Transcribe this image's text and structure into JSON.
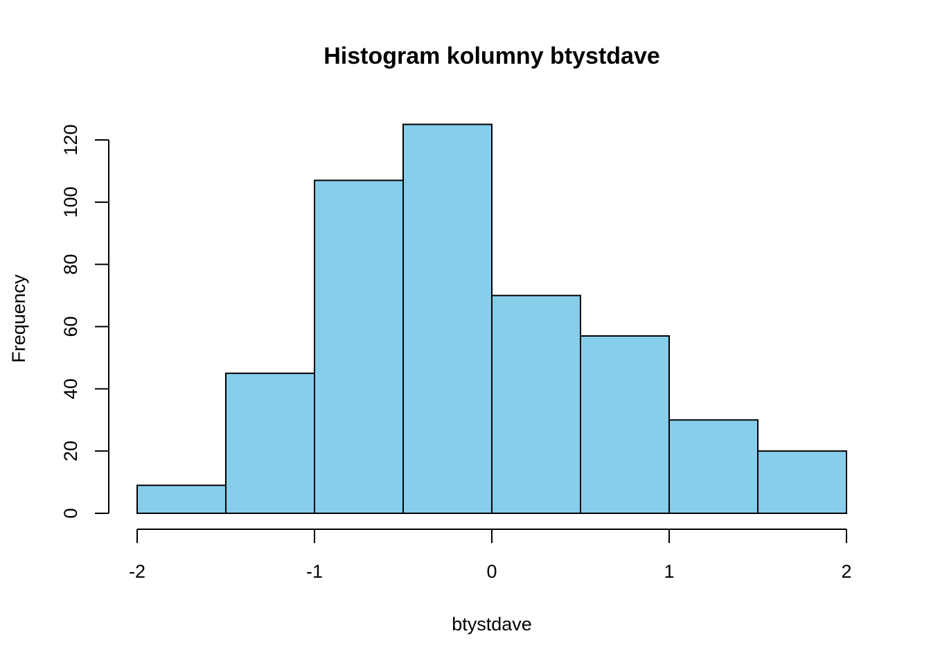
{
  "chart_data": {
    "type": "bar",
    "subtype": "histogram",
    "title": "Histogram kolumny btystdave",
    "xlabel": "btystdave",
    "ylabel": "Frequency",
    "bin_edges": [
      -2.0,
      -1.5,
      -1.0,
      -0.5,
      0.0,
      0.5,
      1.0,
      1.5,
      2.0
    ],
    "values": [
      9,
      45,
      107,
      125,
      70,
      57,
      30,
      20
    ],
    "xlim": [
      -2,
      2
    ],
    "ylim": [
      0,
      125
    ],
    "x_ticks": [
      -2,
      -1,
      0,
      1,
      2
    ],
    "x_tick_labels": [
      "-2",
      "-1",
      "0",
      "1",
      "2"
    ],
    "y_ticks": [
      0,
      20,
      40,
      60,
      80,
      100,
      120
    ],
    "y_tick_labels": [
      "0",
      "20",
      "40",
      "60",
      "80",
      "100",
      "120"
    ],
    "bar_color": "#87CEEB",
    "border_color": "#000000",
    "grid": false
  }
}
